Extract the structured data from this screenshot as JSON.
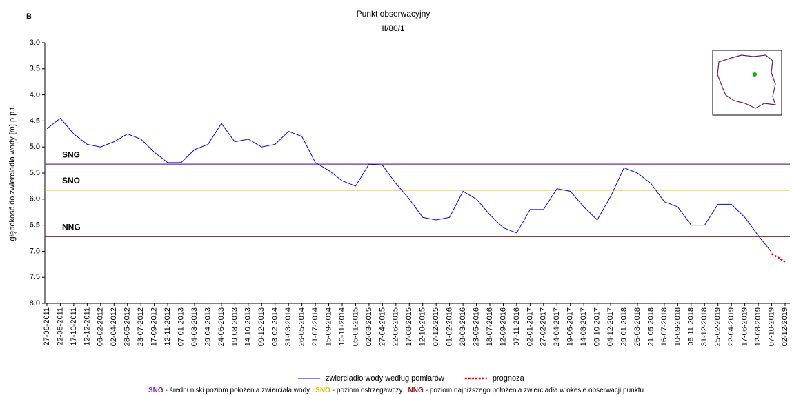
{
  "chart_data": {
    "type": "line",
    "panel": "B",
    "title": "Punkt obserwacyjny",
    "subtitle": "II/80/1",
    "y_label": "głębokość do zwierciadła wody [m] p.p.t.",
    "y_inverted": true,
    "ylim": [
      3,
      8
    ],
    "yticks": [
      {
        "value": 3,
        "label": "3.0"
      },
      3.5,
      {
        "value": 4,
        "label": "4.0"
      },
      4.5,
      {
        "value": 5,
        "label": "5.0"
      },
      5.5,
      {
        "value": 6,
        "label": "6.0"
      },
      6.5,
      {
        "value": 7,
        "label": "7.0"
      },
      7.5,
      {
        "value": 8,
        "label": "8.0"
      }
    ],
    "categories": [
      "27-06-2011",
      "22-08-2011",
      "17-10-2011",
      "12-12-2011",
      "06-02-2012",
      "02-04-2012",
      "28-05-2012",
      "23-07-2012",
      "17-09-2012",
      "12-11-2012",
      "07-01-2013",
      "04-03-2013",
      "29-04-2013",
      "24-06-2013",
      "19-08-2013",
      "14-10-2013",
      "09-12-2013",
      "03-02-2014",
      "31-03-2014",
      "26-05-2014",
      "21-07-2014",
      "15-09-2014",
      "10-11-2014",
      "05-01-2015",
      "02-03-2015",
      "27-04-2015",
      "22-06-2015",
      "17-08-2015",
      "12-10-2015",
      "07-12-2015",
      "01-02-2016",
      "28-03-2016",
      "23-05-2016",
      "18-07-2016",
      "12-09-2016",
      "07-11-2016",
      "02-01-2017",
      "27-02-2017",
      "24-04-2017",
      "19-06-2017",
      "14-08-2017",
      "09-10-2017",
      "04-12-2017",
      "29-01-2018",
      "26-03-2018",
      "21-05-2018",
      "16-07-2018",
      "10-09-2018",
      "05-11-2018",
      "31-12-2018",
      "25-02-2019",
      "22-04-2019",
      "17-06-2019",
      "12-08-2019",
      "07-10-2019",
      "02-12-2019"
    ],
    "series": [
      {
        "name": "zwierciadło wody według pomiarów",
        "color": "#0000ff",
        "dashed": false,
        "values": [
          4.65,
          4.45,
          4.75,
          4.95,
          5.0,
          4.9,
          4.75,
          4.85,
          5.1,
          5.3,
          5.3,
          5.05,
          4.95,
          4.55,
          4.9,
          4.85,
          5.0,
          4.95,
          4.7,
          4.8,
          5.3,
          5.45,
          5.65,
          5.75,
          5.33,
          5.35,
          5.7,
          6.0,
          6.35,
          6.4,
          6.35,
          5.85,
          6.0,
          6.3,
          6.55,
          6.65,
          6.2,
          6.2,
          5.8,
          5.85,
          6.15,
          6.4,
          5.95,
          5.4,
          5.5,
          5.7,
          6.05,
          6.15,
          6.5,
          6.5,
          6.1,
          6.1,
          6.35,
          6.7,
          7.02,
          null
        ]
      },
      {
        "name": "prognoza",
        "color": "#ff0000",
        "dashed": true,
        "values": [
          null,
          null,
          null,
          null,
          null,
          null,
          null,
          null,
          null,
          null,
          null,
          null,
          null,
          null,
          null,
          null,
          null,
          null,
          null,
          null,
          null,
          null,
          null,
          null,
          null,
          null,
          null,
          null,
          null,
          null,
          null,
          null,
          null,
          null,
          null,
          null,
          null,
          null,
          null,
          null,
          null,
          null,
          null,
          null,
          null,
          null,
          null,
          null,
          null,
          null,
          null,
          null,
          null,
          null,
          7.05,
          7.2
        ]
      }
    ],
    "reference_lines": [
      {
        "label": "SNG",
        "value": 5.33,
        "color": "#7b2c91",
        "description": "- średni niski poziom położenia zwierciała wody"
      },
      {
        "label": "SNO",
        "value": 5.83,
        "color": "#f0b400",
        "description": "- poziom ostrzegawczy"
      },
      {
        "label": "NNG",
        "value": 6.72,
        "color": "#8b1a1a",
        "description": "- poziom najniższego położenia zwierciadła w okesie obserwacji punktu"
      }
    ]
  }
}
